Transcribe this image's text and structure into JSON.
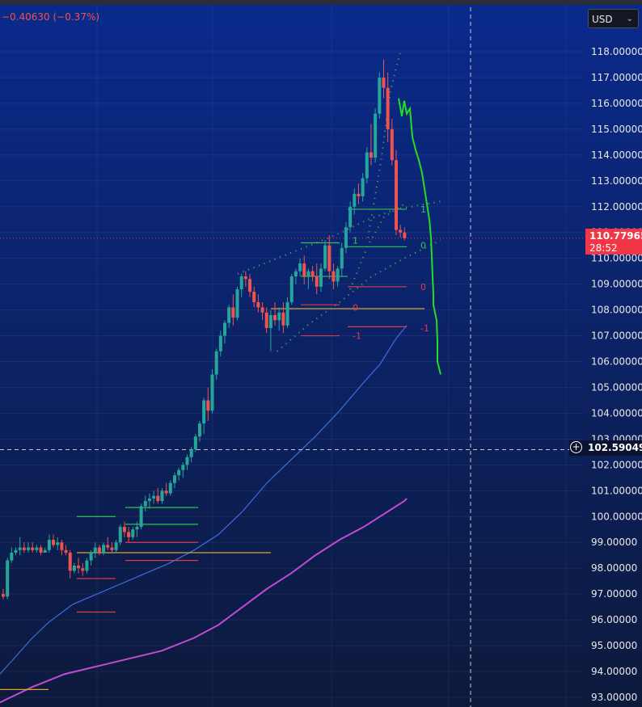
{
  "header": {
    "change_text": "−0.40630 (−0.37%)",
    "currency": "USD"
  },
  "price_label": {
    "price": "110.77965",
    "countdown": "28:52"
  },
  "crosshair_label": {
    "price": "102.59049"
  },
  "colors": {
    "up": "#26a69a",
    "down": "#ef5350",
    "forecast": "#22dd22",
    "ma_fast": "#3d6de0",
    "ma_slow": "#c04cd0",
    "channel": "#4caf50",
    "level_red": "#e03a4a",
    "level_green": "#2ec452",
    "level_orange": "#d9a330"
  },
  "chart_data": {
    "type": "candlestick",
    "ylim": [
      92.8,
      119.5
    ],
    "yticks": [
      "93.00000",
      "94.00000",
      "95.00000",
      "96.00000",
      "97.00000",
      "98.00000",
      "99.00000",
      "100.00000",
      "101.00000",
      "102.00000",
      "103.00000",
      "104.00000",
      "105.00000",
      "106.00000",
      "107.00000",
      "108.00000",
      "109.00000",
      "110.00000",
      "111.00000",
      "112.00000",
      "113.00000",
      "114.00000",
      "115.00000",
      "116.00000",
      "117.00000",
      "118.00000"
    ],
    "candles": [
      [
        97,
        97.2,
        96.8,
        96.9
      ],
      [
        96.9,
        98.4,
        96.8,
        98.3
      ],
      [
        98.3,
        98.8,
        98.2,
        98.6
      ],
      [
        98.6,
        98.8,
        98.5,
        98.7
      ],
      [
        98.7,
        99.2,
        98.5,
        98.8
      ],
      [
        98.8,
        99,
        98.6,
        98.7
      ],
      [
        98.7,
        99,
        98.6,
        98.8
      ],
      [
        98.8,
        99,
        98.6,
        98.7
      ],
      [
        98.7,
        98.9,
        98.6,
        98.8
      ],
      [
        98.8,
        98.9,
        98.5,
        98.6
      ],
      [
        98.6,
        98.8,
        98.6,
        98.7
      ],
      [
        98.7,
        99.3,
        98.6,
        99.1
      ],
      [
        99.1,
        99.3,
        98.8,
        98.9
      ],
      [
        98.9,
        99.2,
        98.7,
        99
      ],
      [
        99,
        99.1,
        98.5,
        98.7
      ],
      [
        98.7,
        98.9,
        98.5,
        98.6
      ],
      [
        98.6,
        98.7,
        97.6,
        97.9
      ],
      [
        97.9,
        98.2,
        97.8,
        98.1
      ],
      [
        98.1,
        98.4,
        97.8,
        98
      ],
      [
        98,
        98.2,
        97.7,
        97.9
      ],
      [
        97.9,
        98.4,
        97.8,
        98.3
      ],
      [
        98.3,
        98.7,
        98.1,
        98.6
      ],
      [
        98.6,
        99,
        98.4,
        98.8
      ],
      [
        98.8,
        98.9,
        98.5,
        98.6
      ],
      [
        98.6,
        99,
        98.5,
        98.9
      ],
      [
        98.9,
        99.2,
        98.7,
        98.8
      ],
      [
        98.8,
        99,
        98.6,
        98.7
      ],
      [
        98.7,
        99.1,
        98.6,
        99
      ],
      [
        99,
        99.7,
        98.9,
        99.6
      ],
      [
        99.6,
        99.8,
        99.2,
        99.4
      ],
      [
        99.4,
        99.6,
        99,
        99.2
      ],
      [
        99.2,
        99.6,
        99.1,
        99.5
      ],
      [
        99.5,
        99.8,
        99.2,
        99.6
      ],
      [
        99.6,
        100.5,
        99.5,
        100.4
      ],
      [
        100.4,
        100.8,
        100.2,
        100.6
      ],
      [
        100.6,
        100.9,
        100.3,
        100.7
      ],
      [
        100.7,
        101,
        100.5,
        100.8
      ],
      [
        100.8,
        101.1,
        100.5,
        100.6
      ],
      [
        100.6,
        101.1,
        100.5,
        101
      ],
      [
        101,
        101.3,
        100.8,
        100.9
      ],
      [
        100.9,
        101.4,
        100.8,
        101.3
      ],
      [
        101.3,
        101.7,
        101.1,
        101.6
      ],
      [
        101.6,
        101.9,
        101.4,
        101.8
      ],
      [
        101.8,
        102.1,
        101.5,
        102
      ],
      [
        102,
        102.4,
        101.8,
        102.3
      ],
      [
        102.3,
        102.7,
        102.1,
        102.6
      ],
      [
        102.6,
        103.2,
        102.5,
        103.1
      ],
      [
        103.1,
        103.7,
        102.9,
        103.6
      ],
      [
        103.6,
        104.6,
        103.2,
        104.5
      ],
      [
        104.5,
        105,
        103.7,
        104.1
      ],
      [
        104.1,
        105.7,
        104,
        105.5
      ],
      [
        105.5,
        106.5,
        105.3,
        106.4
      ],
      [
        106.4,
        107.2,
        106.2,
        107
      ],
      [
        107,
        107.6,
        106.7,
        107.5
      ],
      [
        107.5,
        108.2,
        107.3,
        108.1
      ],
      [
        108.1,
        108.6,
        107.4,
        107.7
      ],
      [
        107.7,
        108.9,
        107.6,
        108.8
      ],
      [
        108.8,
        109.4,
        108.5,
        109.3
      ],
      [
        109.3,
        109.5,
        108.9,
        109.2
      ],
      [
        109.2,
        109.4,
        108.5,
        108.7
      ],
      [
        108.7,
        108.9,
        108.1,
        108.3
      ],
      [
        108.3,
        108.6,
        107.9,
        108.1
      ],
      [
        108.1,
        108.3,
        107.6,
        107.9
      ],
      [
        107.9,
        108.1,
        107.1,
        107.3
      ],
      [
        107.3,
        108,
        106.4,
        107.8
      ],
      [
        107.8,
        108.3,
        107.4,
        107.6
      ],
      [
        107.6,
        108.1,
        107.2,
        107.9
      ],
      [
        107.9,
        108.3,
        107.1,
        107.4
      ],
      [
        107.4,
        108.5,
        107.3,
        108.3
      ],
      [
        108.3,
        109.4,
        108.2,
        109.3
      ],
      [
        109.3,
        109.6,
        109,
        109.5
      ],
      [
        109.5,
        110,
        109.3,
        109.8
      ],
      [
        109.8,
        110.1,
        109,
        109.3
      ],
      [
        109.3,
        109.6,
        108.8,
        109.5
      ],
      [
        109.5,
        109.7,
        109.1,
        109.3
      ],
      [
        109.3,
        109.8,
        108.6,
        108.9
      ],
      [
        108.9,
        109.8,
        108.7,
        109.6
      ],
      [
        109.6,
        110.7,
        109.5,
        110.5
      ],
      [
        110.5,
        110.9,
        109.2,
        109.5
      ],
      [
        109.5,
        109.8,
        108.8,
        109.1
      ],
      [
        109.1,
        109.7,
        108.9,
        109.6
      ],
      [
        109.6,
        110.6,
        109.3,
        110.4
      ],
      [
        110.4,
        111.4,
        110.2,
        111.2
      ],
      [
        111.2,
        112.2,
        111,
        112
      ],
      [
        112,
        112.7,
        111.7,
        112.5
      ],
      [
        112.5,
        112.9,
        112.1,
        112.4
      ],
      [
        112.4,
        113.3,
        112.2,
        113.1
      ],
      [
        113.1,
        114.3,
        112.9,
        114.1
      ],
      [
        114.1,
        115.2,
        113.6,
        113.9
      ],
      [
        113.9,
        115.8,
        113.7,
        115.6
      ],
      [
        115.6,
        117.2,
        115.4,
        117
      ],
      [
        117,
        117.7,
        116.2,
        116.6
      ],
      [
        116.6,
        117.2,
        114.5,
        115
      ],
      [
        115,
        115.4,
        113.6,
        113.8
      ],
      [
        113.8,
        114.2,
        110.9,
        111.1
      ],
      [
        111.1,
        111.3,
        110.8,
        111
      ],
      [
        111,
        111.2,
        110.7,
        110.78
      ]
    ],
    "x0": 4,
    "dx": 5.17,
    "forecast": [
      [
        493,
        116.2
      ],
      [
        497,
        115.5
      ],
      [
        500,
        116.1
      ],
      [
        503,
        115.6
      ],
      [
        507,
        115.8
      ],
      [
        510,
        114.7
      ],
      [
        514,
        114.2
      ],
      [
        518,
        113.8
      ],
      [
        522,
        113.3
      ],
      [
        525,
        112.7
      ],
      [
        528,
        112.1
      ],
      [
        531,
        111.5
      ],
      [
        533,
        110.8
      ],
      [
        534,
        110.1
      ],
      [
        535,
        109.3
      ],
      [
        536,
        108.6
      ],
      [
        536,
        108.2
      ],
      [
        540,
        107.6
      ],
      [
        541,
        106.8
      ],
      [
        541,
        106
      ],
      [
        545,
        105.5
      ]
    ],
    "ma_fast": [
      [
        0,
        93.9
      ],
      [
        20,
        94.6
      ],
      [
        40,
        95.3
      ],
      [
        60,
        95.9
      ],
      [
        90,
        96.6
      ],
      [
        120,
        97.0
      ],
      [
        150,
        97.4
      ],
      [
        180,
        97.8
      ],
      [
        210,
        98.2
      ],
      [
        240,
        98.7
      ],
      [
        270,
        99.3
      ],
      [
        300,
        100.2
      ],
      [
        330,
        101.3
      ],
      [
        360,
        102.2
      ],
      [
        390,
        103.1
      ],
      [
        420,
        104.1
      ],
      [
        450,
        105.2
      ],
      [
        470,
        105.9
      ],
      [
        490,
        106.9
      ],
      [
        503,
        107.4
      ]
    ],
    "ma_slow": [
      [
        0,
        92.8
      ],
      [
        40,
        93.4
      ],
      [
        80,
        93.9
      ],
      [
        120,
        94.2
      ],
      [
        160,
        94.5
      ],
      [
        200,
        94.8
      ],
      [
        240,
        95.3
      ],
      [
        270,
        95.8
      ],
      [
        300,
        96.5
      ],
      [
        330,
        97.2
      ],
      [
        360,
        97.8
      ],
      [
        390,
        98.5
      ],
      [
        420,
        99.1
      ],
      [
        450,
        99.6
      ],
      [
        480,
        100.2
      ],
      [
        500,
        100.6
      ],
      [
        503,
        100.7
      ]
    ],
    "channel_upper": [
      [
        294,
        109.4
      ],
      [
        335,
        109.9
      ],
      [
        375,
        110.4
      ],
      [
        415,
        110.9
      ],
      [
        455,
        111.5
      ],
      [
        490,
        111.9
      ],
      [
        545,
        112.2
      ]
    ],
    "channel_lower": [
      [
        343,
        106.4
      ],
      [
        380,
        107.4
      ],
      [
        420,
        108.3
      ],
      [
        460,
        109.3
      ],
      [
        500,
        110.0
      ],
      [
        545,
        110.7
      ]
    ],
    "channel_spike": [
      [
        455,
        110.8
      ],
      [
        470,
        113.5
      ],
      [
        483,
        116.5
      ],
      [
        495,
        118.0
      ]
    ],
    "channel_mid": [
      [
        433,
        108.8
      ],
      [
        455,
        110.5
      ],
      [
        475,
        111.6
      ],
      [
        500,
        112.1
      ]
    ],
    "levels": [
      {
        "x1": 95,
        "x2": 143,
        "y": 100.0,
        "color": "green"
      },
      {
        "x1": 155,
        "x2": 245,
        "y": 100.35,
        "color": "green"
      },
      {
        "x1": 155,
        "x2": 245,
        "y": 99.7,
        "color": "green"
      },
      {
        "x1": 155,
        "x2": 245,
        "y": 99.0,
        "color": "red"
      },
      {
        "x1": 95,
        "x2": 143,
        "y": 97.6,
        "color": "red"
      },
      {
        "x1": 95,
        "x2": 143,
        "y": 96.3,
        "color": "red"
      },
      {
        "x1": 155,
        "x2": 245,
        "y": 98.3,
        "color": "red"
      },
      {
        "x1": 95,
        "x2": 335,
        "y": 98.6,
        "color": "orange"
      },
      {
        "x1": 0,
        "x2": 60,
        "y": 93.3,
        "color": "orange"
      },
      {
        "x1": 372,
        "x2": 420,
        "y": 110.6,
        "color": "green"
      },
      {
        "x1": 372,
        "x2": 430,
        "y": 109.3,
        "color": "green"
      },
      {
        "x1": 372,
        "x2": 420,
        "y": 108.2,
        "color": "red"
      },
      {
        "x1": 372,
        "x2": 420,
        "y": 107.0,
        "color": "red"
      },
      {
        "x1": 335,
        "x2": 525,
        "y": 108.05,
        "color": "orange"
      },
      {
        "x1": 430,
        "x2": 503,
        "y": 111.9,
        "color": "green"
      },
      {
        "x1": 430,
        "x2": 503,
        "y": 110.45,
        "color": "green"
      },
      {
        "x1": 430,
        "x2": 503,
        "y": 108.9,
        "color": "red"
      },
      {
        "x1": 430,
        "x2": 503,
        "y": 107.35,
        "color": "red"
      }
    ],
    "labels": [
      {
        "x": 436,
        "y": 110.7,
        "text": "1",
        "color": "green"
      },
      {
        "x": 520,
        "y": 111.9,
        "text": "1",
        "color": "green"
      },
      {
        "x": 520,
        "y": 110.5,
        "text": "0",
        "color": "green"
      },
      {
        "x": 520,
        "y": 108.9,
        "text": "0",
        "color": "red"
      },
      {
        "x": 436,
        "y": 108.1,
        "text": "0",
        "color": "red"
      },
      {
        "x": 520,
        "y": 107.3,
        "text": "-1",
        "color": "red"
      },
      {
        "x": 436,
        "y": 107.0,
        "text": "-1",
        "color": "red"
      }
    ],
    "last_price": 110.78,
    "crosshair": {
      "x": 582,
      "y": 102.59
    }
  }
}
